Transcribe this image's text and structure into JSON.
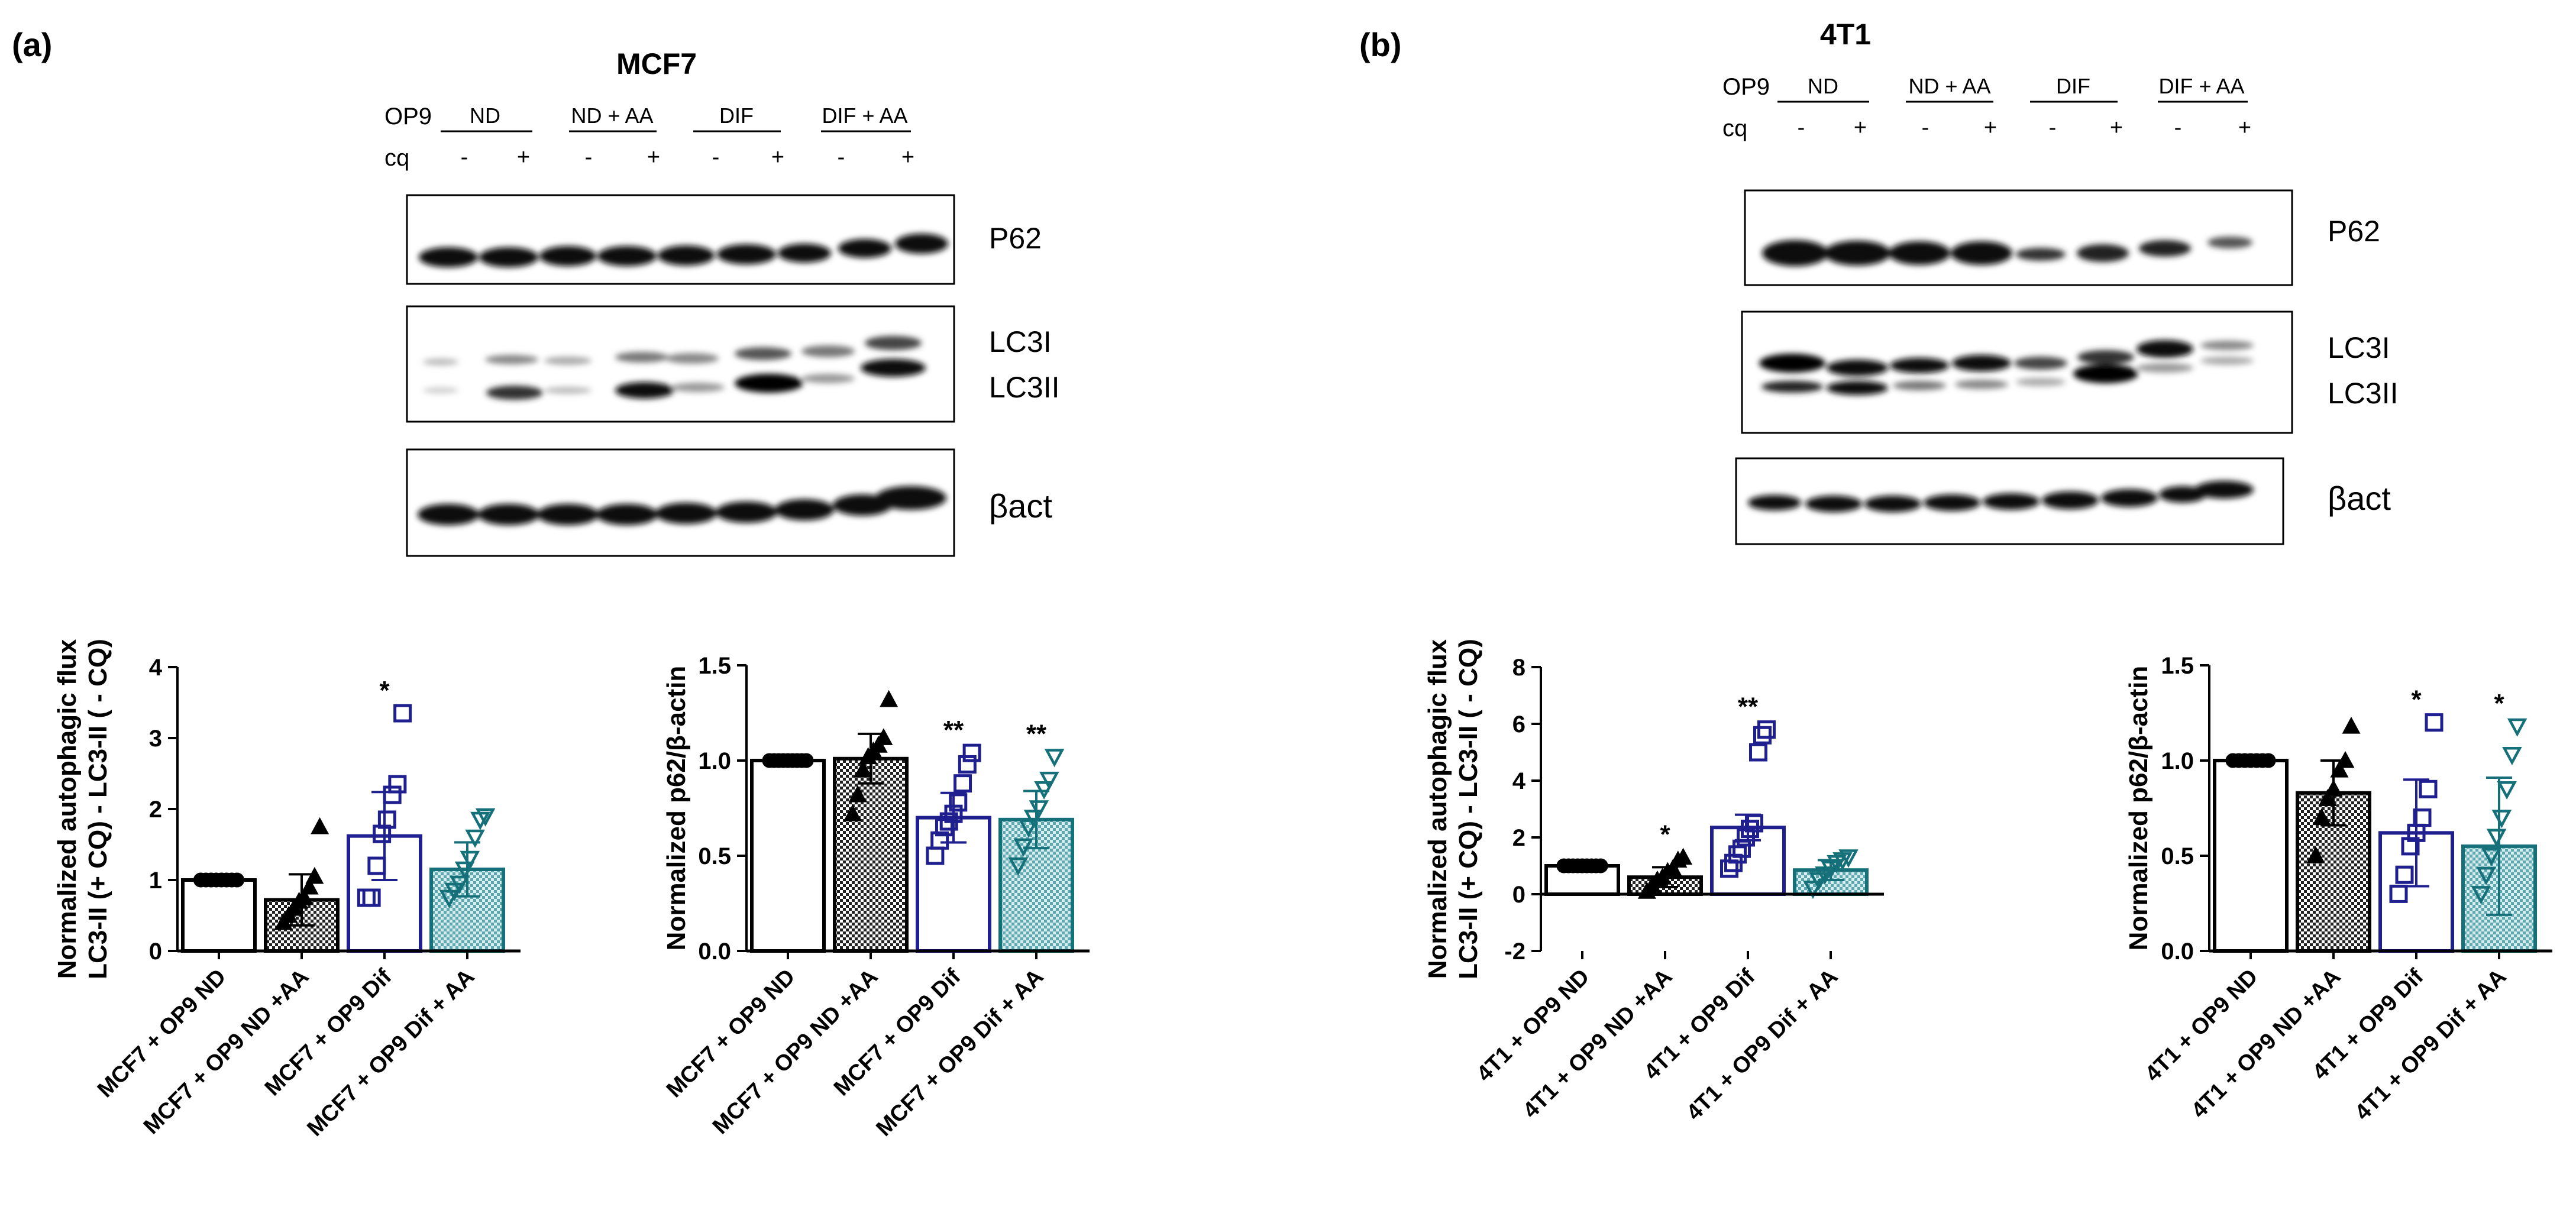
{
  "panels": [
    {
      "label": "(a)",
      "title": "MCF7",
      "op9_label": "OP9",
      "cq_label": "cq",
      "groups": [
        "ND",
        "ND + AA",
        "DIF",
        "DIF + AA"
      ],
      "cq_signs": [
        "-",
        "+",
        "-",
        "+",
        "-",
        "+",
        "-",
        "+"
      ],
      "blot_labels": [
        "P62",
        "LC3I",
        "LC3II",
        "βact"
      ]
    },
    {
      "label": "(b)",
      "title": "4T1",
      "op9_label": "OP9",
      "cq_label": "cq",
      "groups": [
        "ND",
        "ND + AA",
        "DIF",
        "DIF + AA"
      ],
      "cq_signs": [
        "-",
        "+",
        "-",
        "+",
        "-",
        "+",
        "-",
        "+"
      ],
      "blot_labels": [
        "P62",
        "LC3I",
        "LC3II",
        "βact"
      ]
    }
  ],
  "colors": {
    "black": "#000000",
    "navy": "#1f1f8f",
    "teal": "#15707a"
  },
  "chart_data": [
    {
      "type": "bar",
      "panel": "(a)",
      "ylabel_line1": "Normalized autophagic flux",
      "ylabel_line2": "LC3-II (+ CQ) - LC3-II ( - CQ)",
      "ylim": [
        0,
        4
      ],
      "yticks": [
        "0",
        "1",
        "2",
        "3",
        "4"
      ],
      "categories": [
        "MCF7 + OP9 ND",
        "MCF7 + OP9 ND +AA",
        "MCF7 + OP9 Dif",
        "MCF7 + OP9 Dif + AA"
      ],
      "values": [
        1.0,
        0.72,
        1.62,
        1.15
      ],
      "errors": [
        0.02,
        0.36,
        0.62,
        0.38
      ],
      "significance": [
        "",
        "",
        "*",
        ""
      ],
      "points": [
        [
          1,
          1,
          1,
          1,
          1,
          1,
          1,
          1
        ],
        [
          0.4,
          0.5,
          0.6,
          0.7,
          0.75,
          0.9,
          1.05,
          1.75
        ],
        [
          0.75,
          0.75,
          1.2,
          1.65,
          1.85,
          2.2,
          2.35,
          3.35
        ],
        [
          0.75,
          0.85,
          0.95,
          1.15,
          1.3,
          1.6,
          1.85,
          1.9
        ]
      ],
      "markers": [
        "circle",
        "triangle",
        "square",
        "triangle-down"
      ]
    },
    {
      "type": "bar",
      "panel": "(a)",
      "ylabel_line1": "Normalized p62/β-actin",
      "ylim": [
        0,
        1.5
      ],
      "yticks": [
        "0.0",
        "0.5",
        "1.0",
        "1.5"
      ],
      "categories": [
        "MCF7 + OP9 ND",
        "MCF7 + OP9 ND +AA",
        "MCF7 + OP9 Dif",
        "MCF7 + OP9 Dif + AA"
      ],
      "values": [
        1.0,
        1.01,
        0.7,
        0.69
      ],
      "errors": [
        0.01,
        0.13,
        0.13,
        0.15
      ],
      "significance": [
        "",
        "",
        "**",
        "**"
      ],
      "points": [
        [
          1,
          1,
          1,
          1,
          1,
          1,
          1,
          1,
          1
        ],
        [
          0.72,
          0.82,
          0.95,
          1.02,
          1.05,
          1.08,
          1.12,
          1.32
        ],
        [
          0.5,
          0.58,
          0.65,
          0.68,
          0.72,
          0.78,
          0.88,
          0.98,
          1.04
        ],
        [
          0.45,
          0.55,
          0.65,
          0.7,
          0.75,
          0.85,
          0.9,
          1.02
        ]
      ],
      "markers": [
        "circle",
        "triangle",
        "square",
        "triangle-down"
      ]
    },
    {
      "type": "bar",
      "panel": "(b)",
      "ylabel_line1": "Normalized autophagic flux",
      "ylabel_line2": "LC3-II (+ CQ) - LC3-II ( - CQ)",
      "ylim": [
        -2,
        8
      ],
      "yticks": [
        "-2",
        "0",
        "2",
        "4",
        "6",
        "8"
      ],
      "categories": [
        "4T1 + OP9 ND",
        "4T1 + OP9 ND +AA",
        "4T1 + OP9 Dif",
        "4T1 + OP9 Dif + AA"
      ],
      "values": [
        1.0,
        0.6,
        2.35,
        0.85
      ],
      "errors": [
        0.02,
        0.35,
        0.45,
        0.35
      ],
      "significance": [
        "",
        "*",
        "**",
        ""
      ],
      "points": [
        [
          1,
          1,
          1,
          1,
          1,
          1,
          1,
          1,
          1
        ],
        [
          0.1,
          0.3,
          0.5,
          0.6,
          0.8,
          0.9,
          1.2,
          1.3
        ],
        [
          0.9,
          1.1,
          1.4,
          1.6,
          2.0,
          2.3,
          2.5,
          5.0,
          5.6,
          5.8
        ],
        [
          0.2,
          0.5,
          0.7,
          0.9,
          1.1,
          1.2,
          1.3
        ]
      ],
      "markers": [
        "circle",
        "triangle",
        "square",
        "triangle-down"
      ]
    },
    {
      "type": "bar",
      "panel": "(b)",
      "ylabel_line1": "Normalized p62/β-actin",
      "ylim": [
        0,
        1.5
      ],
      "yticks": [
        "0.0",
        "0.5",
        "1.0",
        "1.5"
      ],
      "categories": [
        "4T1 + OP9 ND",
        "4T1 + OP9 ND +AA",
        "4T1 + OP9 Dif",
        "4T1 + OP9 Dif + AA"
      ],
      "values": [
        1.0,
        0.83,
        0.62,
        0.55
      ],
      "errors": [
        0.01,
        0.17,
        0.28,
        0.36
      ],
      "significance": [
        "",
        "",
        "*",
        "*"
      ],
      "points": [
        [
          1,
          1,
          1,
          1,
          1,
          1,
          1
        ],
        [
          0.5,
          0.7,
          0.8,
          0.85,
          0.95,
          1.0,
          1.18
        ],
        [
          0.3,
          0.4,
          0.55,
          0.62,
          0.7,
          0.85,
          1.2
        ],
        [
          0.3,
          0.4,
          0.5,
          0.6,
          0.7,
          0.85,
          1.03,
          1.18
        ]
      ],
      "markers": [
        "circle",
        "triangle",
        "square",
        "triangle-down"
      ]
    }
  ]
}
